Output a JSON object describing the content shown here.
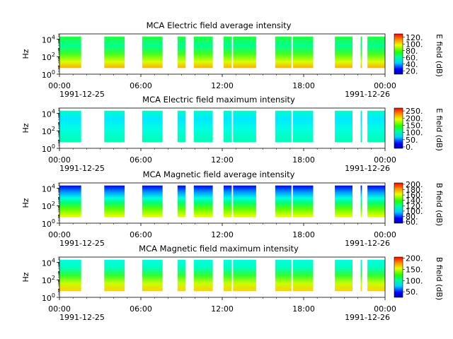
{
  "chart_data": [
    {
      "type": "heatmap",
      "title": "MCA  Electric field average intensity",
      "ylabel": "Hz",
      "y_scale": "log",
      "ylim": [
        1,
        40000
      ],
      "y_ticks": [
        {
          "base": "10",
          "exp": "0"
        },
        {
          "base": "10",
          "exp": "2"
        },
        {
          "base": "10",
          "exp": "4"
        }
      ],
      "x_ticks": [
        "00:00",
        "06:00",
        "12:00",
        "18:00",
        "00:00"
      ],
      "x_range": [
        "1991-12-25 00:00",
        "1991-12-26 00:00"
      ],
      "date_labels": [
        "1991-12-25",
        "1991-12-26"
      ],
      "colorbar": {
        "label": "E field (dB)",
        "ticks": [
          "20.",
          "40.",
          "60.",
          "80.",
          "100.",
          "120."
        ],
        "range": [
          10,
          130
        ]
      },
      "palette": "rainbow",
      "data_intervals": [
        [
          0.0,
          1.6
        ],
        [
          3.3,
          4.8
        ],
        [
          6.1,
          7.6
        ],
        [
          8.7,
          9.3
        ],
        [
          9.9,
          11.3
        ],
        [
          12.1,
          12.7
        ],
        [
          12.8,
          14.5
        ],
        [
          15.9,
          17.1
        ],
        [
          17.2,
          18.7
        ],
        [
          20.3,
          21.6
        ],
        [
          22.2,
          22.3
        ],
        [
          22.7,
          24.0
        ]
      ],
      "level": "high"
    },
    {
      "type": "heatmap",
      "title": "MCA  Electric field maximum intensity",
      "ylabel": "Hz",
      "y_scale": "log",
      "ylim": [
        1,
        40000
      ],
      "y_ticks": [
        {
          "base": "10",
          "exp": "0"
        },
        {
          "base": "10",
          "exp": "2"
        },
        {
          "base": "10",
          "exp": "4"
        }
      ],
      "x_ticks": [
        "00:00",
        "06:00",
        "12:00",
        "18:00",
        "00:00"
      ],
      "x_range": [
        "1991-12-25 00:00",
        "1991-12-26 00:00"
      ],
      "date_labels": [
        "1991-12-25",
        "1991-12-26"
      ],
      "colorbar": {
        "label": "E field (dB)",
        "ticks": [
          "0.",
          "50.",
          "100.",
          "150.",
          "200.",
          "250."
        ],
        "range": [
          -10,
          270
        ]
      },
      "palette": "rainbow",
      "data_intervals": [
        [
          0.0,
          1.6
        ],
        [
          3.3,
          4.8
        ],
        [
          6.1,
          7.6
        ],
        [
          8.7,
          9.3
        ],
        [
          9.9,
          11.3
        ],
        [
          12.1,
          12.7
        ],
        [
          12.8,
          14.5
        ],
        [
          15.9,
          17.1
        ],
        [
          17.2,
          18.7
        ],
        [
          20.3,
          21.6
        ],
        [
          22.2,
          22.3
        ],
        [
          22.7,
          24.0
        ]
      ],
      "level": "mid"
    },
    {
      "type": "heatmap",
      "title": "MCA  Magnetic field average intensity",
      "ylabel": "Hz",
      "y_scale": "log",
      "ylim": [
        1,
        40000
      ],
      "y_ticks": [
        {
          "base": "10",
          "exp": "0"
        },
        {
          "base": "10",
          "exp": "2"
        },
        {
          "base": "10",
          "exp": "4"
        }
      ],
      "x_ticks": [
        "00:00",
        "06:00",
        "12:00",
        "18:00",
        "00:00"
      ],
      "x_range": [
        "1991-12-25 00:00",
        "1991-12-26 00:00"
      ],
      "date_labels": [
        "1991-12-25",
        "1991-12-26"
      ],
      "colorbar": {
        "label": "B field (dB)",
        "ticks": [
          "60.",
          "80.",
          "100.",
          "120.",
          "140.",
          "160.",
          "180.",
          "200."
        ],
        "range": [
          55,
          205
        ]
      },
      "palette": "rainbow",
      "data_intervals": [
        [
          0.0,
          1.6
        ],
        [
          3.3,
          4.8
        ],
        [
          6.1,
          7.6
        ],
        [
          8.7,
          9.3
        ],
        [
          9.9,
          11.3
        ],
        [
          12.1,
          12.7
        ],
        [
          12.8,
          14.5
        ],
        [
          15.9,
          17.1
        ],
        [
          17.2,
          18.7
        ],
        [
          20.3,
          21.6
        ],
        [
          22.2,
          22.3
        ],
        [
          22.7,
          24.0
        ]
      ],
      "level": "gradient"
    },
    {
      "type": "heatmap",
      "title": "MCA  Magnetic field maximum intensity",
      "ylabel": "Hz",
      "y_scale": "log",
      "ylim": [
        1,
        40000
      ],
      "y_ticks": [
        {
          "base": "10",
          "exp": "0"
        },
        {
          "base": "10",
          "exp": "2"
        },
        {
          "base": "10",
          "exp": "4"
        }
      ],
      "x_ticks": [
        "00:00",
        "06:00",
        "12:00",
        "18:00",
        "00:00"
      ],
      "x_range": [
        "1991-12-25 00:00",
        "1991-12-26 00:00"
      ],
      "date_labels": [
        "1991-12-25",
        "1991-12-26"
      ],
      "colorbar": {
        "label": "B field (dB)",
        "ticks": [
          "50.",
          "100.",
          "150.",
          "200."
        ],
        "range": [
          25,
          205
        ]
      },
      "palette": "rainbow",
      "data_intervals": [
        [
          0.0,
          1.6
        ],
        [
          3.3,
          4.8
        ],
        [
          6.1,
          7.6
        ],
        [
          8.7,
          9.3
        ],
        [
          9.9,
          11.3
        ],
        [
          12.1,
          12.7
        ],
        [
          12.8,
          14.5
        ],
        [
          15.9,
          17.1
        ],
        [
          17.2,
          18.7
        ],
        [
          20.3,
          21.6
        ],
        [
          22.2,
          22.3
        ],
        [
          22.7,
          24.0
        ]
      ],
      "level": "gradient2"
    }
  ]
}
